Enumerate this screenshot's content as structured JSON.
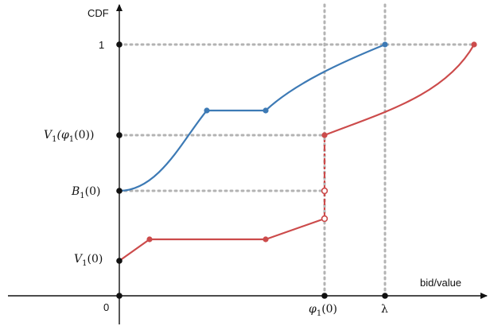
{
  "axes": {
    "y_title": "CDF",
    "x_title": "bid/value",
    "origin_label": "0"
  },
  "y_ticks": {
    "one": "1",
    "v1phi": {
      "base": "V",
      "sub": "1",
      "arg": "(φ",
      "arg_sub": "1",
      "tail": "(0))"
    },
    "b1": {
      "base": "B",
      "sub": "1",
      "tail": "(0)"
    },
    "v1": {
      "base": "V",
      "sub": "1",
      "tail": "(0)"
    }
  },
  "x_ticks": {
    "phi": {
      "base": "φ",
      "sub": "1",
      "tail": "(0)"
    },
    "lambda": "λ"
  },
  "colors": {
    "blue": "#3d7ab5",
    "red": "#cc4b4b",
    "guide": "#b3b3b3",
    "axis": "#111111"
  }
}
